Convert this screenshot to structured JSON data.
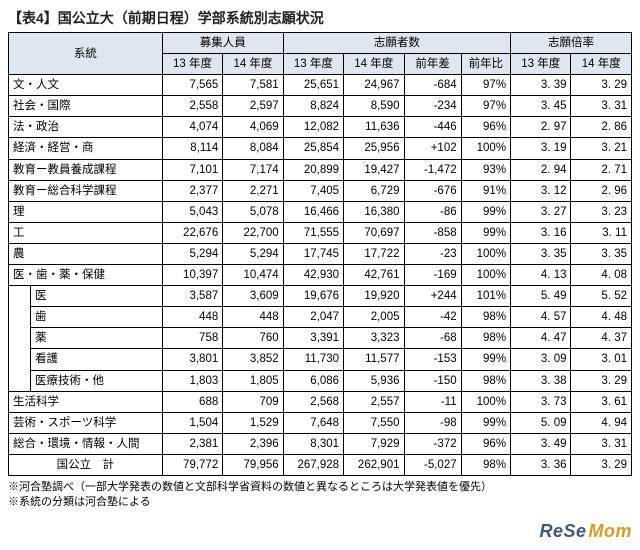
{
  "title": "【表4】国公立大（前期日程）学部系統別志願状況",
  "header": {
    "group1": "系統",
    "group2": "募集人員",
    "group3": "志願者数",
    "group4": "志願倍率",
    "y13": "13 年度",
    "y14": "14 年度",
    "diff": "前年差",
    "ratio": "前年比"
  },
  "rows": [
    {
      "indent": 0,
      "label": "文・人文",
      "r13": "7,565",
      "r14": "7,581",
      "a13": "25,651",
      "a14": "24,967",
      "diff": "-684",
      "pct": "97%",
      "b13": "3. 39",
      "b14": "3. 29"
    },
    {
      "indent": 0,
      "label": "社会・国際",
      "r13": "2,558",
      "r14": "2,597",
      "a13": "8,824",
      "a14": "8,590",
      "diff": "-234",
      "pct": "97%",
      "b13": "3. 45",
      "b14": "3. 31"
    },
    {
      "indent": 0,
      "label": "法・政治",
      "r13": "4,074",
      "r14": "4,069",
      "a13": "12,082",
      "a14": "11,636",
      "diff": "-446",
      "pct": "96%",
      "b13": "2. 97",
      "b14": "2. 86"
    },
    {
      "indent": 0,
      "label": "経済・経営・商",
      "r13": "8,114",
      "r14": "8,084",
      "a13": "25,854",
      "a14": "25,956",
      "diff": "+102",
      "pct": "100%",
      "b13": "3. 19",
      "b14": "3. 21"
    },
    {
      "indent": 0,
      "label": "教育ー教員養成課程",
      "r13": "7,101",
      "r14": "7,174",
      "a13": "20,899",
      "a14": "19,427",
      "diff": "-1,472",
      "pct": "93%",
      "b13": "2. 94",
      "b14": "2. 71"
    },
    {
      "indent": 0,
      "label": "教育ー総合科学課程",
      "r13": "2,377",
      "r14": "2,271",
      "a13": "7,405",
      "a14": "6,729",
      "diff": "-676",
      "pct": "91%",
      "b13": "3. 12",
      "b14": "2. 96"
    },
    {
      "indent": 0,
      "label": "理",
      "r13": "5,043",
      "r14": "5,078",
      "a13": "16,466",
      "a14": "16,380",
      "diff": "-86",
      "pct": "99%",
      "b13": "3. 27",
      "b14": "3. 23"
    },
    {
      "indent": 0,
      "label": "工",
      "r13": "22,676",
      "r14": "22,700",
      "a13": "71,555",
      "a14": "70,697",
      "diff": "-858",
      "pct": "99%",
      "b13": "3. 16",
      "b14": "3. 11"
    },
    {
      "indent": 0,
      "label": "農",
      "r13": "5,294",
      "r14": "5,294",
      "a13": "17,745",
      "a14": "17,722",
      "diff": "-23",
      "pct": "100%",
      "b13": "3. 35",
      "b14": "3. 35"
    },
    {
      "indent": 0,
      "label": "医・歯・薬・保健",
      "r13": "10,397",
      "r14": "10,474",
      "a13": "42,930",
      "a14": "42,761",
      "diff": "-169",
      "pct": "100%",
      "b13": "4. 13",
      "b14": "4. 08"
    },
    {
      "indent": 1,
      "label": "医",
      "r13": "3,587",
      "r14": "3,609",
      "a13": "19,676",
      "a14": "19,920",
      "diff": "+244",
      "pct": "101%",
      "b13": "5. 49",
      "b14": "5. 52"
    },
    {
      "indent": 1,
      "label": "歯",
      "r13": "448",
      "r14": "448",
      "a13": "2,047",
      "a14": "2,005",
      "diff": "-42",
      "pct": "98%",
      "b13": "4. 57",
      "b14": "4. 48"
    },
    {
      "indent": 1,
      "label": "薬",
      "r13": "758",
      "r14": "760",
      "a13": "3,391",
      "a14": "3,323",
      "diff": "-68",
      "pct": "98%",
      "b13": "4. 47",
      "b14": "4. 37"
    },
    {
      "indent": 1,
      "label": "看護",
      "r13": "3,801",
      "r14": "3,852",
      "a13": "11,730",
      "a14": "11,577",
      "diff": "-153",
      "pct": "99%",
      "b13": "3. 09",
      "b14": "3. 01"
    },
    {
      "indent": 1,
      "label": "医療技術・他",
      "r13": "1,803",
      "r14": "1,805",
      "a13": "6,086",
      "a14": "5,936",
      "diff": "-150",
      "pct": "98%",
      "b13": "3. 38",
      "b14": "3. 29"
    },
    {
      "indent": 0,
      "label": "生活科学",
      "r13": "688",
      "r14": "709",
      "a13": "2,568",
      "a14": "2,557",
      "diff": "-11",
      "pct": "100%",
      "b13": "3. 73",
      "b14": "3. 61"
    },
    {
      "indent": 0,
      "label": "芸術・スポーツ科学",
      "r13": "1,504",
      "r14": "1,529",
      "a13": "7,648",
      "a14": "7,550",
      "diff": "-98",
      "pct": "99%",
      "b13": "5. 09",
      "b14": "4. 94"
    },
    {
      "indent": 0,
      "label": "総合・環境・情報・人間",
      "r13": "2,381",
      "r14": "2,396",
      "a13": "8,301",
      "a14": "7,929",
      "diff": "-372",
      "pct": "96%",
      "b13": "3. 49",
      "b14": "3. 31"
    },
    {
      "indent": 0,
      "label": "国公立　計",
      "center": true,
      "r13": "79,772",
      "r14": "79,956",
      "a13": "267,928",
      "a14": "262,901",
      "diff": "-5,027",
      "pct": "98%",
      "b13": "3. 36",
      "b14": "3. 29"
    }
  ],
  "footnotes": [
    "※河合塾調べ（一部大学発表の数値と文部科学省資料の数値と異なるところは大学発表値を優先）",
    "※系統の分類は河合塾による"
  ],
  "brand": {
    "part1": "ReSe",
    "part2": "Mom"
  }
}
